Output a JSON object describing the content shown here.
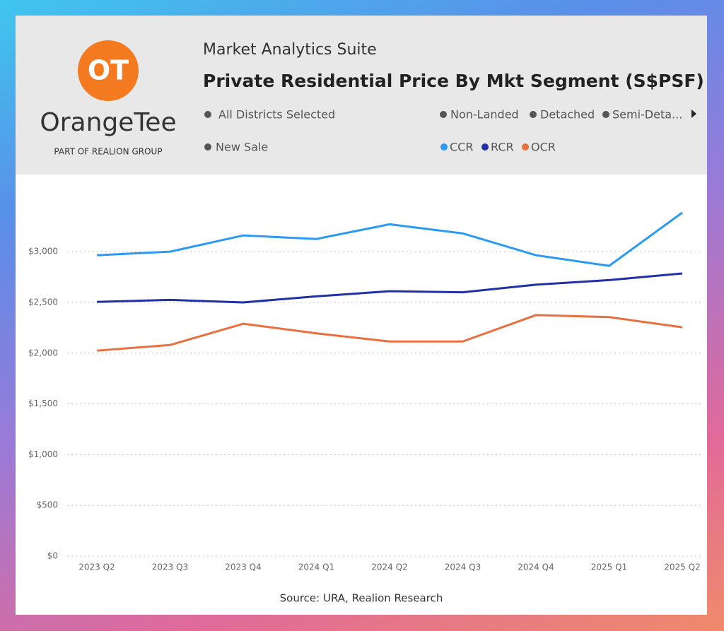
{
  "header": {
    "suite": "Market Analytics Suite",
    "logo_mark": "OT",
    "brand": "OrangeTee",
    "tagline": "PART OF REALION GROUP"
  },
  "filters": [
    "All Districts Selected",
    "New Sale",
    "Non-Landed",
    "Detached",
    "Semi-Deta..."
  ],
  "chart_data": {
    "type": "line",
    "title": "Private Residential Price By Mkt Segment (S$PSF)",
    "source": "Source: URA, Realion Research",
    "categories": [
      "2023 Q2",
      "2023 Q3",
      "2023 Q4",
      "2024 Q1",
      "2024 Q2",
      "2024 Q3",
      "2024 Q4",
      "2025 Q1",
      "2025 Q2"
    ],
    "series": [
      {
        "name": "CCR",
        "color": "#2b9af3",
        "values": [
          2965,
          3000,
          3160,
          3125,
          3270,
          3180,
          2965,
          2860,
          3385
        ]
      },
      {
        "name": "RCR",
        "color": "#2230a8",
        "values": [
          2505,
          2525,
          2500,
          2560,
          2610,
          2600,
          2675,
          2720,
          2785
        ]
      },
      {
        "name": "OCR",
        "color": "#ea6f3e",
        "values": [
          2025,
          2080,
          2290,
          2195,
          2115,
          2115,
          2375,
          2355,
          2255
        ]
      }
    ],
    "ylim": [
      0,
      3600
    ],
    "yticks": [
      {
        "value": 0,
        "label": "$0"
      },
      {
        "value": 500,
        "label": "$500"
      },
      {
        "value": 1000,
        "label": "$1,000"
      },
      {
        "value": 1500,
        "label": "$1,500"
      },
      {
        "value": 2000,
        "label": "$2,000"
      },
      {
        "value": 2500,
        "label": "$2,500"
      },
      {
        "value": 3000,
        "label": "$3,000"
      }
    ],
    "grid": true
  }
}
